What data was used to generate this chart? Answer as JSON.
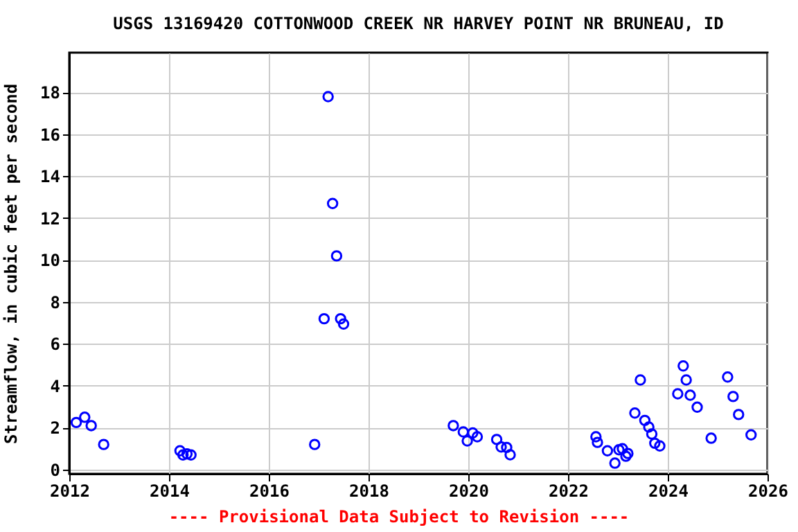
{
  "chart_data": {
    "type": "scatter",
    "title": "USGS 13169420 COTTONWOOD CREEK NR HARVEY POINT NR BRUNEAU, ID",
    "ylabel": "Streamflow, in cubic feet per second",
    "annotations": [
      "---- Provisional Data Subject to Revision ----"
    ],
    "x": [
      2012.14,
      2012.31,
      2012.44,
      2012.69,
      2014.22,
      2014.28,
      2014.36,
      2014.44,
      2016.92,
      2017.11,
      2017.19,
      2017.28,
      2017.36,
      2017.44,
      2017.5,
      2019.7,
      2019.9,
      2019.98,
      2020.09,
      2020.18,
      2020.57,
      2020.66,
      2020.77,
      2020.84,
      2022.56,
      2022.59,
      2022.79,
      2022.94,
      2023.02,
      2023.09,
      2023.16,
      2023.2,
      2023.34,
      2023.45,
      2023.54,
      2023.62,
      2023.68,
      2023.74,
      2023.84,
      2024.2,
      2024.31,
      2024.37,
      2024.45,
      2024.59,
      2024.87,
      2025.2,
      2025.31,
      2025.42,
      2025.67
    ],
    "series": [
      {
        "color": "#0000ff",
        "values": [
          2.25,
          2.5,
          2.1,
          1.2,
          0.9,
          0.7,
          0.75,
          0.7,
          1.2,
          7.2,
          17.8,
          12.7,
          10.2,
          7.2,
          6.95,
          2.1,
          1.8,
          1.37,
          1.75,
          1.57,
          1.44,
          1.08,
          1.06,
          0.71,
          1.57,
          1.3,
          0.9,
          0.31,
          0.95,
          1.0,
          0.64,
          0.77,
          2.7,
          4.28,
          2.35,
          2.03,
          1.7,
          1.26,
          1.13,
          3.62,
          4.95,
          4.28,
          3.55,
          2.98,
          1.5,
          4.42,
          3.49,
          2.63,
          1.66
        ]
      }
    ],
    "xlim": [
      2012,
      2026
    ],
    "xticks": [
      2012,
      2014,
      2016,
      2018,
      2020,
      2022,
      2024,
      2026
    ],
    "ylim": [
      -0.2,
      19.9
    ],
    "yticks": [
      0,
      2,
      4,
      6,
      8,
      10,
      12,
      14,
      16,
      18
    ],
    "grid": true,
    "marker": "circle",
    "legend": false
  }
}
